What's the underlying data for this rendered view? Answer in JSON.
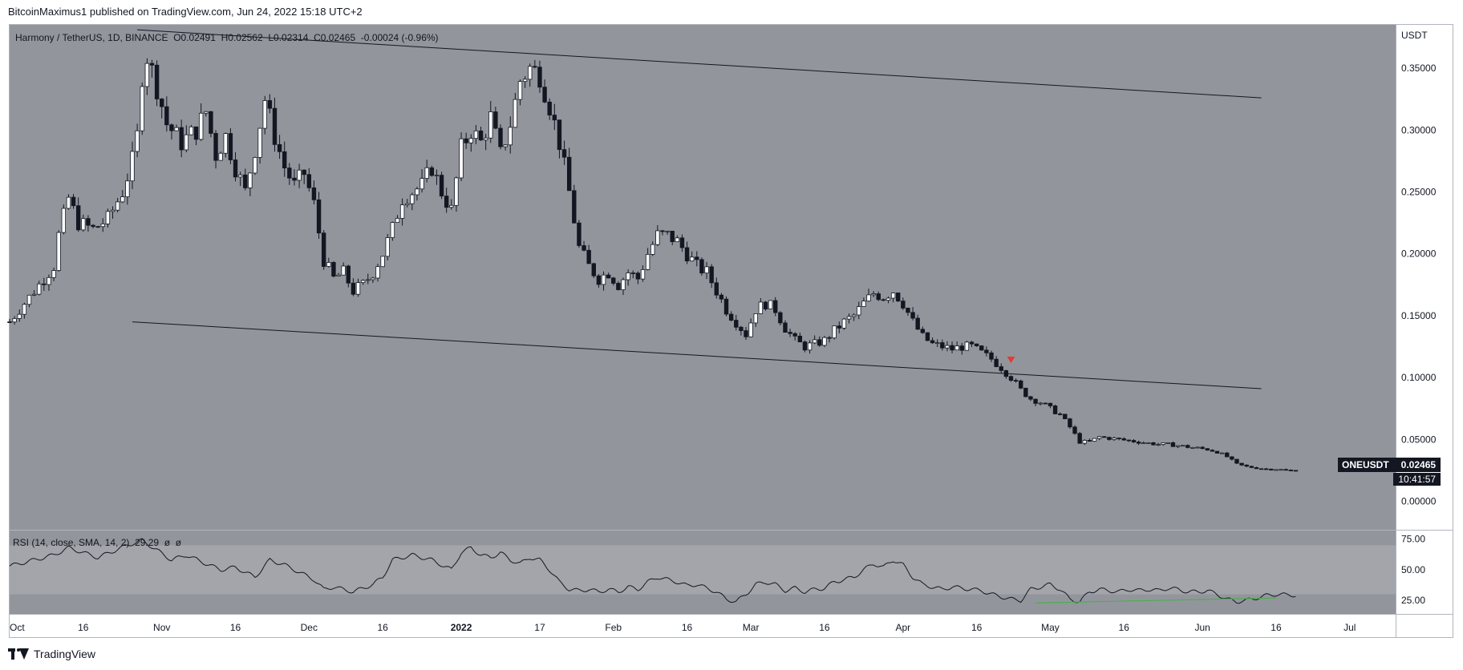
{
  "header": {
    "publisher_line": "BitcoinMaximus1 published on TradingView.com, Jun 24, 2022 15:18 UTC+2"
  },
  "legend": {
    "symbol": "Harmony / TetherUS, 1D, BINANCE",
    "open_label": "O",
    "open": "0.02491",
    "high_label": "H",
    "high": "0.02562",
    "low_label": "L",
    "low": "0.02314",
    "close_label": "C",
    "close": "0.02465",
    "change": "-0.00024 (-0.96%)"
  },
  "rsi_legend": {
    "label": "RSI (14, close, SMA, 14, 2)",
    "value": "29.29",
    "extra1": "ø",
    "extra2": "ø"
  },
  "price_badge": {
    "symbol": "ONEUSDT",
    "price": "0.02465",
    "countdown": "10:41:57"
  },
  "footer": {
    "brand": "TradingView"
  },
  "colors": {
    "pane_bg": "#93959c",
    "rsi_band": "#a3a5ab",
    "candle_up": "#ffffff",
    "candle_down": "#131722",
    "rsi_line": "#131722",
    "support_line": "#4caf50",
    "marker": "#e53935",
    "text": "#131722",
    "badge_bg": "#131722"
  },
  "chart_data": {
    "type": "candlestick",
    "title": "Harmony / TetherUS, 1D, BINANCE",
    "currency": "USDT",
    "y_axis": {
      "label": "USDT",
      "ylim": [
        -0.023,
        0.385
      ],
      "ticks": [
        "0.35000",
        "0.30000",
        "0.25000",
        "0.20000",
        "0.15000",
        "0.10000",
        "0.05000",
        "0.00000"
      ]
    },
    "x_axis": {
      "ticks": [
        {
          "label": "Oct",
          "day": 0
        },
        {
          "label": "16",
          "day": 15
        },
        {
          "label": "Nov",
          "day": 31
        },
        {
          "label": "16",
          "day": 46
        },
        {
          "label": "Dec",
          "day": 61
        },
        {
          "label": "16",
          "day": 76
        },
        {
          "label": "2022",
          "day": 92
        },
        {
          "label": "17",
          "day": 108
        },
        {
          "label": "Feb",
          "day": 123
        },
        {
          "label": "16",
          "day": 138
        },
        {
          "label": "Mar",
          "day": 151
        },
        {
          "label": "16",
          "day": 166
        },
        {
          "label": "Apr",
          "day": 182
        },
        {
          "label": "16",
          "day": 197
        },
        {
          "label": "May",
          "day": 212
        },
        {
          "label": "16",
          "day": 227
        },
        {
          "label": "Jun",
          "day": 243
        },
        {
          "label": "16",
          "day": 258
        },
        {
          "label": "Jul",
          "day": 273
        }
      ]
    },
    "anchors": [
      [
        0,
        0.145
      ],
      [
        3,
        0.16
      ],
      [
        6,
        0.175
      ],
      [
        9,
        0.19
      ],
      [
        10,
        0.215
      ],
      [
        12,
        0.245
      ],
      [
        14,
        0.225
      ],
      [
        17,
        0.22
      ],
      [
        20,
        0.228
      ],
      [
        23,
        0.25
      ],
      [
        25,
        0.275
      ],
      [
        26,
        0.295
      ],
      [
        27,
        0.345
      ],
      [
        28,
        0.36
      ],
      [
        30,
        0.335
      ],
      [
        32,
        0.305
      ],
      [
        35,
        0.29
      ],
      [
        38,
        0.3
      ],
      [
        40,
        0.315
      ],
      [
        42,
        0.28
      ],
      [
        44,
        0.295
      ],
      [
        46,
        0.27
      ],
      [
        48,
        0.25
      ],
      [
        50,
        0.285
      ],
      [
        52,
        0.325
      ],
      [
        54,
        0.295
      ],
      [
        56,
        0.27
      ],
      [
        58,
        0.255
      ],
      [
        60,
        0.265
      ],
      [
        62,
        0.24
      ],
      [
        64,
        0.195
      ],
      [
        66,
        0.18
      ],
      [
        68,
        0.185
      ],
      [
        70,
        0.17
      ],
      [
        72,
        0.175
      ],
      [
        74,
        0.185
      ],
      [
        76,
        0.2
      ],
      [
        78,
        0.22
      ],
      [
        80,
        0.245
      ],
      [
        82,
        0.25
      ],
      [
        84,
        0.255
      ],
      [
        86,
        0.27
      ],
      [
        88,
        0.25
      ],
      [
        90,
        0.235
      ],
      [
        92,
        0.285
      ],
      [
        94,
        0.3
      ],
      [
        96,
        0.29
      ],
      [
        98,
        0.31
      ],
      [
        100,
        0.28
      ],
      [
        102,
        0.305
      ],
      [
        104,
        0.34
      ],
      [
        106,
        0.35
      ],
      [
        108,
        0.345
      ],
      [
        110,
        0.32
      ],
      [
        112,
        0.29
      ],
      [
        114,
        0.25
      ],
      [
        116,
        0.205
      ],
      [
        118,
        0.19
      ],
      [
        120,
        0.18
      ],
      [
        122,
        0.185
      ],
      [
        124,
        0.175
      ],
      [
        126,
        0.185
      ],
      [
        128,
        0.18
      ],
      [
        130,
        0.2
      ],
      [
        132,
        0.215
      ],
      [
        134,
        0.215
      ],
      [
        136,
        0.21
      ],
      [
        138,
        0.2
      ],
      [
        140,
        0.19
      ],
      [
        142,
        0.185
      ],
      [
        144,
        0.17
      ],
      [
        146,
        0.155
      ],
      [
        148,
        0.145
      ],
      [
        150,
        0.135
      ],
      [
        152,
        0.155
      ],
      [
        154,
        0.16
      ],
      [
        156,
        0.155
      ],
      [
        158,
        0.14
      ],
      [
        160,
        0.13
      ],
      [
        162,
        0.125
      ],
      [
        164,
        0.127
      ],
      [
        166,
        0.13
      ],
      [
        168,
        0.138
      ],
      [
        170,
        0.145
      ],
      [
        172,
        0.15
      ],
      [
        174,
        0.16
      ],
      [
        176,
        0.168
      ],
      [
        178,
        0.165
      ],
      [
        180,
        0.17
      ],
      [
        182,
        0.16
      ],
      [
        184,
        0.145
      ],
      [
        186,
        0.133
      ],
      [
        188,
        0.127
      ],
      [
        190,
        0.125
      ],
      [
        192,
        0.123
      ],
      [
        194,
        0.125
      ],
      [
        196,
        0.125
      ],
      [
        198,
        0.12
      ],
      [
        200,
        0.115
      ],
      [
        202,
        0.108
      ],
      [
        204,
        0.1
      ],
      [
        206,
        0.09
      ],
      [
        208,
        0.083
      ],
      [
        210,
        0.08
      ],
      [
        212,
        0.075
      ],
      [
        214,
        0.07
      ],
      [
        216,
        0.06
      ],
      [
        218,
        0.048
      ],
      [
        220,
        0.048
      ],
      [
        222,
        0.052
      ],
      [
        224,
        0.051
      ],
      [
        226,
        0.05
      ],
      [
        228,
        0.049
      ],
      [
        230,
        0.048
      ],
      [
        232,
        0.047
      ],
      [
        234,
        0.046
      ],
      [
        236,
        0.046
      ],
      [
        238,
        0.045
      ],
      [
        240,
        0.044
      ],
      [
        242,
        0.043
      ],
      [
        244,
        0.042
      ],
      [
        246,
        0.04
      ],
      [
        248,
        0.036
      ],
      [
        250,
        0.03
      ],
      [
        252,
        0.028
      ],
      [
        254,
        0.027
      ],
      [
        256,
        0.026
      ],
      [
        258,
        0.026
      ],
      [
        260,
        0.025
      ],
      [
        262,
        0.0246
      ]
    ],
    "channel": {
      "upper": [
        [
          26,
          0.381
        ],
        [
          255,
          0.326
        ]
      ],
      "lower": [
        [
          25,
          0.145
        ],
        [
          255,
          0.091
        ]
      ]
    },
    "marker": {
      "day": 204,
      "price": 0.113,
      "shape": "down-triangle"
    },
    "last_price": 0.02465,
    "rsi": {
      "label": "RSI (14, close, SMA, 14, 2)",
      "ylim": [
        14,
        82
      ],
      "band": [
        30,
        70
      ],
      "ticks": [
        "75.00",
        "50.00",
        "25.00"
      ],
      "anchors": [
        [
          0,
          53
        ],
        [
          5,
          58
        ],
        [
          9,
          62
        ],
        [
          12,
          68
        ],
        [
          15,
          64
        ],
        [
          18,
          60
        ],
        [
          21,
          65
        ],
        [
          24,
          70
        ],
        [
          27,
          74
        ],
        [
          30,
          66
        ],
        [
          33,
          58
        ],
        [
          36,
          62
        ],
        [
          40,
          55
        ],
        [
          43,
          50
        ],
        [
          46,
          52
        ],
        [
          50,
          44
        ],
        [
          53,
          58
        ],
        [
          56,
          54
        ],
        [
          59,
          48
        ],
        [
          62,
          42
        ],
        [
          64,
          34
        ],
        [
          66,
          36
        ],
        [
          68,
          34
        ],
        [
          70,
          32
        ],
        [
          72,
          35
        ],
        [
          74,
          38
        ],
        [
          76,
          44
        ],
        [
          78,
          58
        ],
        [
          80,
          60
        ],
        [
          82,
          62
        ],
        [
          84,
          60
        ],
        [
          86,
          58
        ],
        [
          88,
          54
        ],
        [
          90,
          50
        ],
        [
          92,
          64
        ],
        [
          94,
          68
        ],
        [
          96,
          62
        ],
        [
          98,
          60
        ],
        [
          100,
          64
        ],
        [
          102,
          58
        ],
        [
          104,
          55
        ],
        [
          106,
          60
        ],
        [
          108,
          58
        ],
        [
          110,
          50
        ],
        [
          112,
          40
        ],
        [
          114,
          34
        ],
        [
          116,
          33
        ],
        [
          118,
          34
        ],
        [
          120,
          32
        ],
        [
          122,
          34
        ],
        [
          124,
          32
        ],
        [
          126,
          36
        ],
        [
          128,
          34
        ],
        [
          130,
          40
        ],
        [
          132,
          44
        ],
        [
          134,
          42
        ],
        [
          136,
          40
        ],
        [
          138,
          37
        ],
        [
          140,
          38
        ],
        [
          142,
          35
        ],
        [
          144,
          32
        ],
        [
          146,
          26
        ],
        [
          148,
          24
        ],
        [
          150,
          30
        ],
        [
          152,
          38
        ],
        [
          154,
          40
        ],
        [
          156,
          38
        ],
        [
          158,
          33
        ],
        [
          160,
          35
        ],
        [
          162,
          32
        ],
        [
          164,
          34
        ],
        [
          166,
          35
        ],
        [
          168,
          40
        ],
        [
          170,
          42
        ],
        [
          172,
          44
        ],
        [
          174,
          50
        ],
        [
          176,
          55
        ],
        [
          178,
          52
        ],
        [
          180,
          58
        ],
        [
          182,
          54
        ],
        [
          184,
          44
        ],
        [
          186,
          38
        ],
        [
          188,
          36
        ],
        [
          190,
          34
        ],
        [
          192,
          36
        ],
        [
          194,
          35
        ],
        [
          196,
          34
        ],
        [
          198,
          33
        ],
        [
          200,
          30
        ],
        [
          202,
          28
        ],
        [
          204,
          26
        ],
        [
          206,
          25
        ],
        [
          208,
          34
        ],
        [
          210,
          36
        ],
        [
          212,
          38
        ],
        [
          214,
          34
        ],
        [
          216,
          26
        ],
        [
          218,
          24
        ],
        [
          220,
          32
        ],
        [
          222,
          34
        ],
        [
          224,
          33
        ],
        [
          226,
          32
        ],
        [
          228,
          34
        ],
        [
          230,
          33
        ],
        [
          232,
          34
        ],
        [
          234,
          33
        ],
        [
          236,
          35
        ],
        [
          238,
          34
        ],
        [
          240,
          32
        ],
        [
          242,
          32
        ],
        [
          244,
          33
        ],
        [
          246,
          30
        ],
        [
          248,
          26
        ],
        [
          250,
          24
        ],
        [
          252,
          25
        ],
        [
          254,
          27
        ],
        [
          256,
          29
        ],
        [
          258,
          30
        ],
        [
          260,
          29.5
        ],
        [
          262,
          29.29
        ]
      ],
      "support_line": [
        [
          209,
          23
        ],
        [
          258,
          27
        ]
      ]
    }
  }
}
